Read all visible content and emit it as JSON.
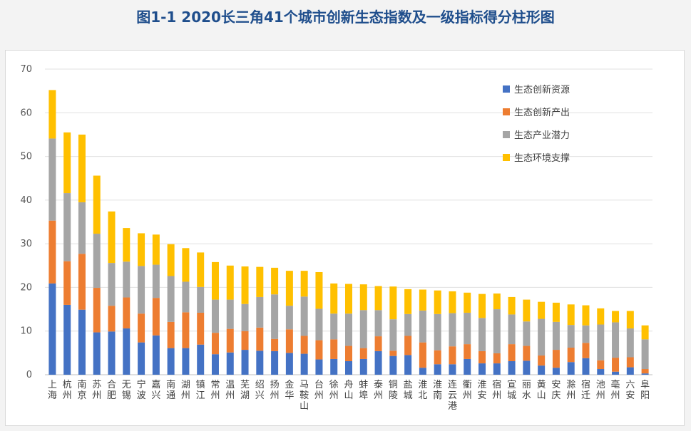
{
  "title": "图1-1 2020长三角41个城市创新生态指数及一级指标得分柱形图",
  "chart_data": {
    "type": "bar",
    "stacked": true,
    "ylim": [
      0,
      70
    ],
    "yticks": [
      0,
      10,
      20,
      30,
      40,
      50,
      60,
      70
    ],
    "grid": true,
    "legend_position": "top-right",
    "categories": [
      "上海",
      "杭州",
      "南京",
      "苏州",
      "合肥",
      "无锡",
      "宁波",
      "嘉兴",
      "南通",
      "湖州",
      "镇江",
      "常州",
      "温州",
      "芜湖",
      "绍兴",
      "扬州",
      "金华",
      "马鞍山",
      "台州",
      "徐州",
      "舟山",
      "蚌埠",
      "泰州",
      "铜陵",
      "盐城",
      "淮北",
      "淮南",
      "连云港",
      "衢州",
      "淮安",
      "宿州",
      "宣城",
      "丽水",
      "黄山",
      "安庆",
      "滁州",
      "宿迁",
      "池州",
      "亳州",
      "六安",
      "阜阳"
    ],
    "series": [
      {
        "name": "生态创新资源",
        "color": "#4472c4",
        "values": [
          20.9,
          16.0,
          14.9,
          9.7,
          9.9,
          10.6,
          7.4,
          9.0,
          6.1,
          6.1,
          6.9,
          4.7,
          5.1,
          5.7,
          5.5,
          5.4,
          5.0,
          4.8,
          3.5,
          3.6,
          3.1,
          3.6,
          5.4,
          4.3,
          4.5,
          1.6,
          2.4,
          2.4,
          3.6,
          2.6,
          2.6,
          3.1,
          3.2,
          2.1,
          1.6,
          2.9,
          3.8,
          1.3,
          0.7,
          1.7,
          0.3
        ]
      },
      {
        "name": "生态创新产出",
        "color": "#ed7d31",
        "values": [
          14.4,
          10.0,
          12.8,
          10.2,
          5.9,
          7.1,
          6.6,
          8.6,
          6.0,
          8.2,
          7.3,
          4.9,
          5.4,
          4.3,
          5.3,
          2.8,
          5.4,
          4.1,
          4.4,
          4.5,
          3.5,
          2.5,
          3.4,
          1.2,
          4.4,
          5.8,
          3.2,
          4.1,
          3.4,
          2.8,
          2.3,
          3.9,
          3.4,
          2.3,
          4.1,
          3.3,
          3.5,
          2.0,
          3.2,
          2.3,
          1.0
        ]
      },
      {
        "name": "生态产业潜力",
        "color": "#a5a5a5",
        "values": [
          18.8,
          15.6,
          11.8,
          12.4,
          9.8,
          8.2,
          10.9,
          7.6,
          10.5,
          7.0,
          5.9,
          7.6,
          6.7,
          6.2,
          7.0,
          10.2,
          5.4,
          9.0,
          7.2,
          5.9,
          7.4,
          8.7,
          6.0,
          7.2,
          5.0,
          7.3,
          8.3,
          7.6,
          7.2,
          7.6,
          10.1,
          6.8,
          5.6,
          8.4,
          6.4,
          5.2,
          4.0,
          8.2,
          8.1,
          6.6,
          6.8
        ]
      },
      {
        "name": "生态环境支撑",
        "color": "#ffc000",
        "values": [
          11.1,
          13.9,
          15.5,
          13.3,
          11.8,
          7.7,
          7.5,
          6.9,
          7.3,
          7.7,
          7.9,
          8.6,
          7.8,
          8.6,
          6.9,
          6.1,
          8.0,
          5.9,
          8.4,
          6.9,
          6.8,
          5.9,
          5.5,
          7.5,
          5.7,
          4.8,
          5.4,
          5.0,
          4.6,
          5.5,
          3.6,
          4.0,
          5.0,
          3.9,
          4.4,
          4.7,
          4.6,
          3.7,
          2.6,
          4.0,
          3.2
        ]
      }
    ]
  }
}
